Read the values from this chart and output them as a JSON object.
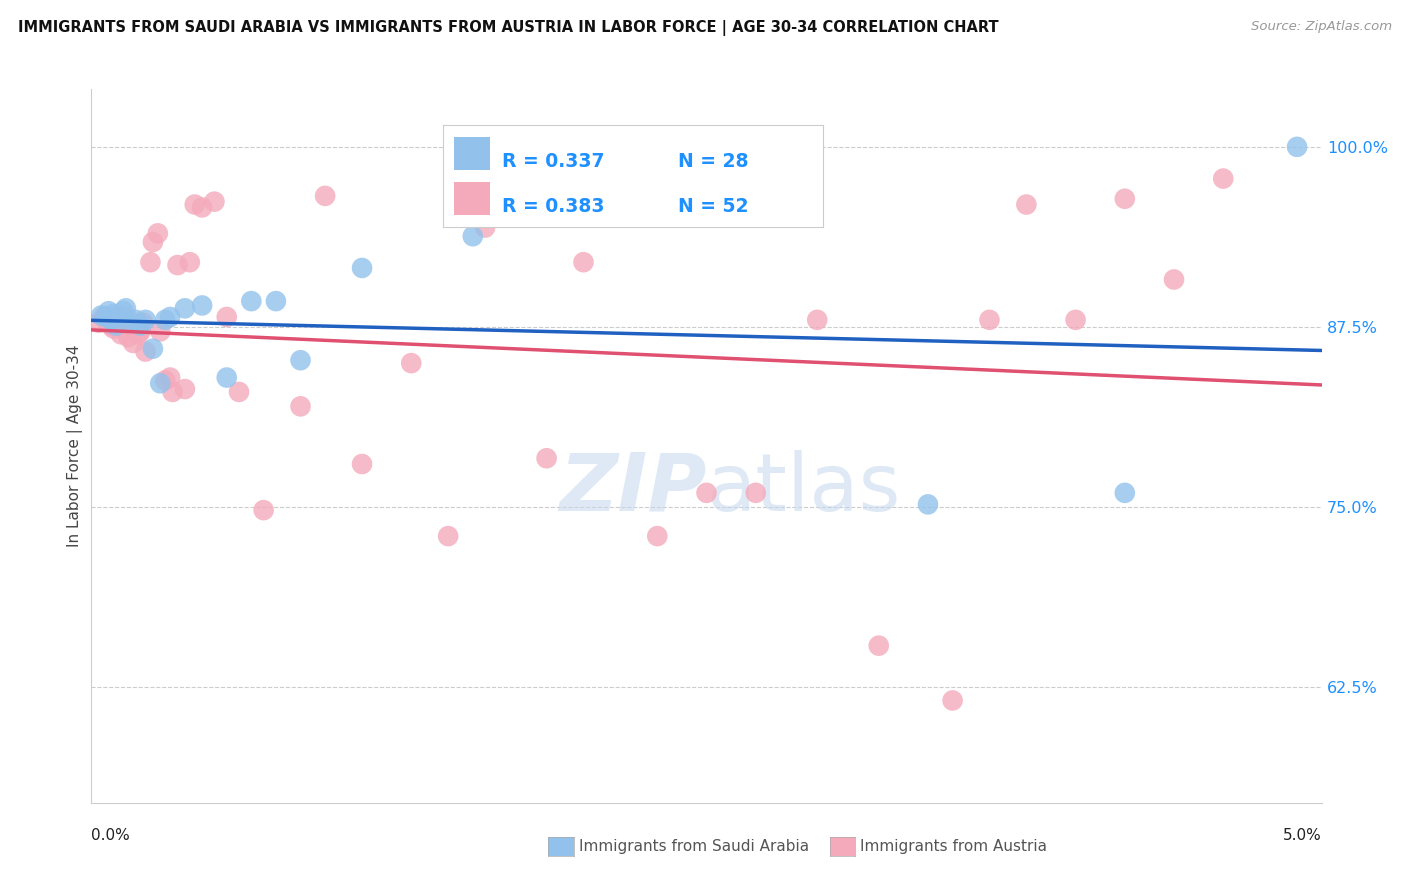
{
  "title": "IMMIGRANTS FROM SAUDI ARABIA VS IMMIGRANTS FROM AUSTRIA IN LABOR FORCE | AGE 30-34 CORRELATION CHART",
  "source": "Source: ZipAtlas.com",
  "ylabel": "In Labor Force | Age 30-34",
  "legend_label_blue": "Immigrants from Saudi Arabia",
  "legend_label_pink": "Immigrants from Austria",
  "legend_r_blue": "R = 0.337",
  "legend_n_blue": "N = 28",
  "legend_r_pink": "R = 0.383",
  "legend_n_pink": "N = 52",
  "color_blue": "#92C2EC",
  "color_pink": "#F4AABB",
  "line_color_blue": "#2060C0",
  "line_color_pink": "#E05070",
  "watermark_zip": "ZIP",
  "watermark_atlas": "atlas",
  "xmin": 0.0,
  "xmax": 0.05,
  "ymin": 0.545,
  "ymax": 1.04,
  "yticks": [
    0.625,
    0.75,
    0.875,
    1.0
  ],
  "ytick_labels": [
    "62.5%",
    "75.0%",
    "87.5%",
    "100.0%"
  ],
  "saudi_x": [
    0.0004,
    0.0006,
    0.0007,
    0.0008,
    0.0009,
    0.001,
    0.0011,
    0.0013,
    0.0014,
    0.0016,
    0.0018,
    0.002,
    0.0022,
    0.0025,
    0.0028,
    0.003,
    0.0032,
    0.0038,
    0.0045,
    0.0055,
    0.0065,
    0.0075,
    0.0085,
    0.011,
    0.0155,
    0.034,
    0.042,
    0.049
  ],
  "saudi_y": [
    0.883,
    0.882,
    0.886,
    0.88,
    0.884,
    0.876,
    0.882,
    0.886,
    0.888,
    0.878,
    0.88,
    0.876,
    0.88,
    0.86,
    0.836,
    0.88,
    0.882,
    0.888,
    0.89,
    0.84,
    0.893,
    0.893,
    0.852,
    0.916,
    0.938,
    0.752,
    0.76,
    1.0
  ],
  "austria_x": [
    0.0003,
    0.0005,
    0.0006,
    0.0008,
    0.0009,
    0.001,
    0.0012,
    0.0013,
    0.0015,
    0.0016,
    0.0017,
    0.0018,
    0.0019,
    0.002,
    0.0021,
    0.0022,
    0.0024,
    0.0025,
    0.0027,
    0.0028,
    0.003,
    0.0032,
    0.0033,
    0.0035,
    0.0038,
    0.004,
    0.0042,
    0.0045,
    0.005,
    0.0055,
    0.006,
    0.007,
    0.0085,
    0.0095,
    0.011,
    0.013,
    0.0145,
    0.016,
    0.0185,
    0.02,
    0.023,
    0.025,
    0.027,
    0.0295,
    0.032,
    0.035,
    0.0365,
    0.038,
    0.04,
    0.042,
    0.044,
    0.046
  ],
  "austria_y": [
    0.878,
    0.882,
    0.88,
    0.876,
    0.874,
    0.876,
    0.87,
    0.882,
    0.868,
    0.876,
    0.864,
    0.878,
    0.87,
    0.872,
    0.878,
    0.858,
    0.92,
    0.934,
    0.94,
    0.872,
    0.838,
    0.84,
    0.83,
    0.918,
    0.832,
    0.92,
    0.96,
    0.958,
    0.962,
    0.882,
    0.83,
    0.748,
    0.82,
    0.966,
    0.78,
    0.85,
    0.73,
    0.944,
    0.784,
    0.92,
    0.73,
    0.76,
    0.76,
    0.88,
    0.654,
    0.616,
    0.88,
    0.96,
    0.88,
    0.964,
    0.908,
    0.978
  ]
}
